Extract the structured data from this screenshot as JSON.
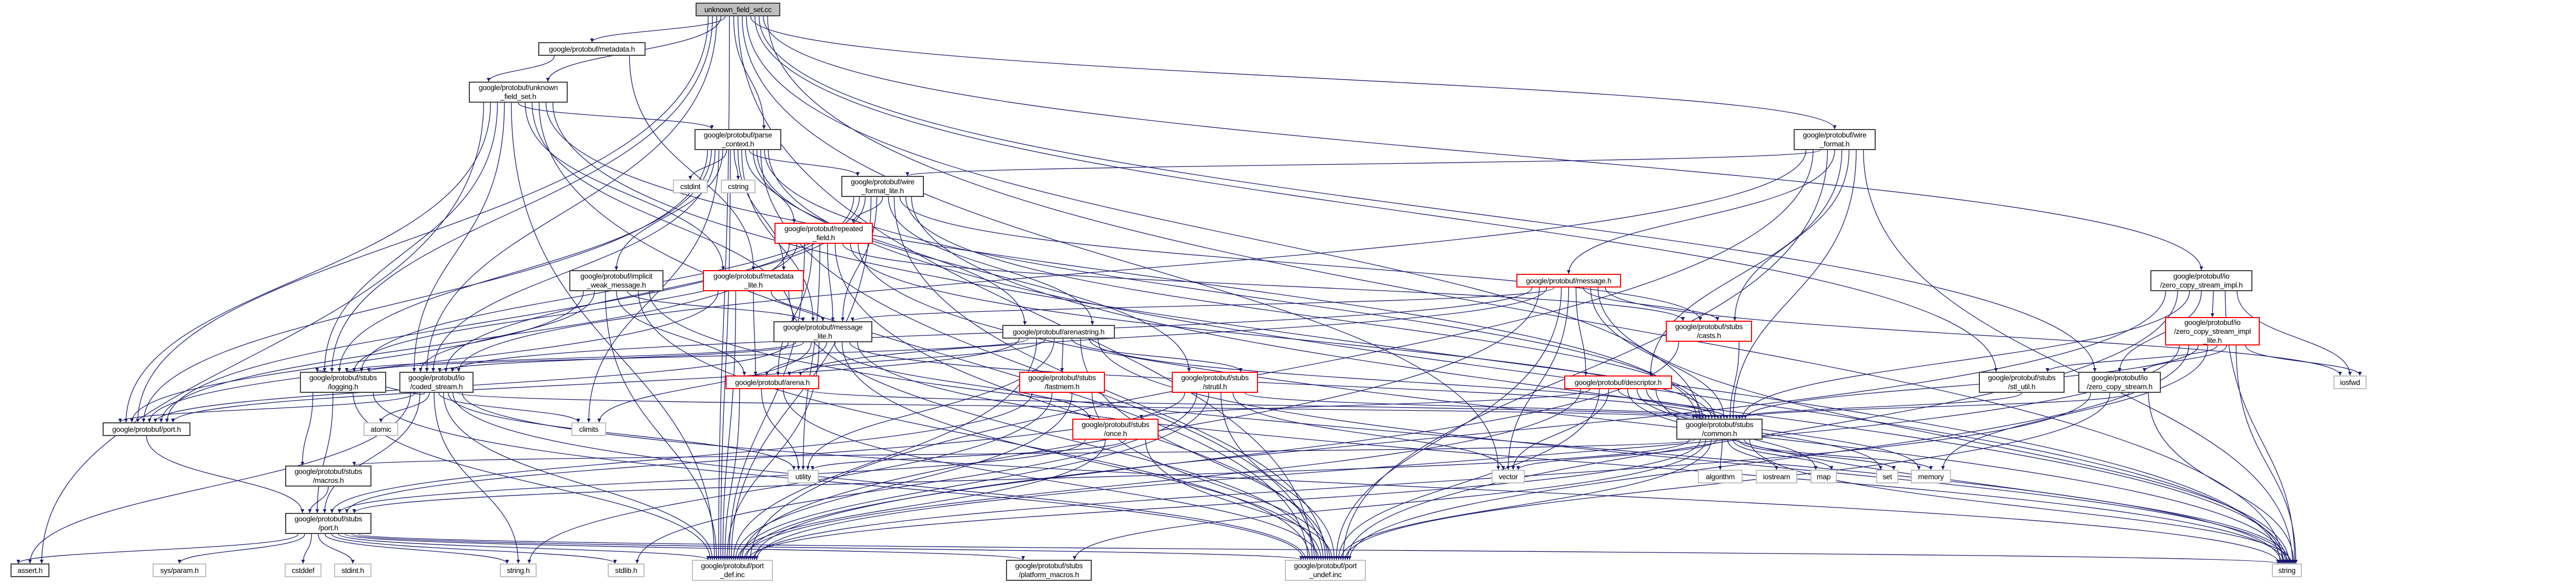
{
  "colors": {
    "edge": "#191970",
    "root_fill": "#bfbfbf",
    "truncated_border": "#ff0000",
    "external_border": "#bfbfbf",
    "normal_border": "#404040"
  },
  "nodes": [
    {
      "label": "unknown_field_set.cc",
      "style": "root"
    },
    {
      "label": "google/protobuf/metadata.h",
      "style": "normal"
    },
    {
      "label": "google/protobuf/unknown\n_field_set.h",
      "style": "normal"
    },
    {
      "label": "google/protobuf/parse\n_context.h",
      "style": "normal"
    },
    {
      "label": "google/protobuf/wire\n_format.h",
      "style": "normal"
    },
    {
      "label": "cstdint",
      "style": "external"
    },
    {
      "label": "cstring",
      "style": "external"
    },
    {
      "label": "google/protobuf/wire\n_format_lite.h",
      "style": "normal"
    },
    {
      "label": "google/protobuf/repeated\n_field.h",
      "style": "truncated"
    },
    {
      "label": "google/protobuf/implicit\n_weak_message.h",
      "style": "normal"
    },
    {
      "label": "google/protobuf/metadata\n_lite.h",
      "style": "truncated"
    },
    {
      "label": "google/protobuf/message.h",
      "style": "truncated"
    },
    {
      "label": "google/protobuf/io\n/zero_copy_stream_impl.h",
      "style": "normal"
    },
    {
      "label": "google/protobuf/io\n/zero_copy_stream_impl\n_lite.h",
      "style": "truncated"
    },
    {
      "label": "google/protobuf/message\n_lite.h",
      "style": "normal"
    },
    {
      "label": "google/protobuf/arenastring.h",
      "style": "normal"
    },
    {
      "label": "google/protobuf/stubs\n/casts.h",
      "style": "truncated"
    },
    {
      "label": "google/protobuf/stubs\n/logging.h",
      "style": "normal"
    },
    {
      "label": "google/protobuf/io\n/coded_stream.h",
      "style": "normal"
    },
    {
      "label": "google/protobuf/stubs\n/fastmem.h",
      "style": "truncated"
    },
    {
      "label": "google/protobuf/stubs\n/strutil.h",
      "style": "truncated"
    },
    {
      "label": "google/protobuf/arena.h",
      "style": "truncated"
    },
    {
      "label": "google/protobuf/descriptor.h",
      "style": "truncated"
    },
    {
      "label": "google/protobuf/stubs\n/stl_util.h",
      "style": "normal"
    },
    {
      "label": "google/protobuf/io\n/zero_copy_stream.h",
      "style": "normal"
    },
    {
      "label": "iosfwd",
      "style": "external"
    },
    {
      "label": "google/protobuf/stubs\n/once.h",
      "style": "truncated"
    },
    {
      "label": "google/protobuf/stubs\n/common.h",
      "style": "normal"
    },
    {
      "label": "google/protobuf/port.h",
      "style": "normal"
    },
    {
      "label": "atomic",
      "style": "external"
    },
    {
      "label": "climits",
      "style": "external"
    },
    {
      "label": "google/protobuf/stubs\n/macros.h",
      "style": "normal"
    },
    {
      "label": "utility",
      "style": "external"
    },
    {
      "label": "vector",
      "style": "external"
    },
    {
      "label": "algorithm",
      "style": "external"
    },
    {
      "label": "iostream",
      "style": "external"
    },
    {
      "label": "map",
      "style": "external"
    },
    {
      "label": "set",
      "style": "external"
    },
    {
      "label": "memory",
      "style": "external"
    },
    {
      "label": "google/protobuf/stubs\n/port.h",
      "style": "normal"
    },
    {
      "label": "assert.h",
      "style": "normal"
    },
    {
      "label": "sys/param.h",
      "style": "external"
    },
    {
      "label": "cstddef",
      "style": "external"
    },
    {
      "label": "stdint.h",
      "style": "external"
    },
    {
      "label": "string.h",
      "style": "external"
    },
    {
      "label": "stdlib.h",
      "style": "external"
    },
    {
      "label": "google/protobuf/port\n_def.inc",
      "style": "external"
    },
    {
      "label": "google/protobuf/stubs\n/platform_macros.h",
      "style": "normal"
    },
    {
      "label": "google/protobuf/port\n_undef.inc",
      "style": "external"
    },
    {
      "label": "string",
      "style": "external"
    }
  ],
  "edges": [
    [
      0,
      1
    ],
    [
      0,
      2
    ],
    [
      0,
      3
    ],
    [
      0,
      4
    ],
    [
      0,
      12
    ],
    [
      0,
      18
    ],
    [
      0,
      17
    ],
    [
      0,
      28
    ],
    [
      0,
      27
    ],
    [
      0,
      23
    ],
    [
      0,
      24
    ],
    [
      0,
      49
    ],
    [
      0,
      46
    ],
    [
      0,
      48
    ],
    [
      0,
      33
    ],
    [
      1,
      2
    ],
    [
      1,
      10
    ],
    [
      2,
      3
    ],
    [
      2,
      10
    ],
    [
      2,
      18
    ],
    [
      2,
      17
    ],
    [
      2,
      28
    ],
    [
      2,
      27
    ],
    [
      2,
      49
    ],
    [
      2,
      40
    ],
    [
      2,
      46
    ],
    [
      2,
      48
    ],
    [
      2,
      14
    ],
    [
      3,
      5
    ],
    [
      3,
      6
    ],
    [
      3,
      7
    ],
    [
      3,
      8
    ],
    [
      3,
      9
    ],
    [
      3,
      10
    ],
    [
      3,
      15
    ],
    [
      3,
      20
    ],
    [
      3,
      18
    ],
    [
      3,
      17
    ],
    [
      3,
      27
    ],
    [
      3,
      28
    ],
    [
      3,
      14
    ],
    [
      3,
      46
    ],
    [
      3,
      48
    ],
    [
      3,
      49
    ],
    [
      3,
      30
    ],
    [
      4,
      7
    ],
    [
      4,
      11
    ],
    [
      4,
      16
    ],
    [
      4,
      22
    ],
    [
      4,
      27
    ],
    [
      4,
      18
    ],
    [
      4,
      46
    ],
    [
      4,
      48
    ],
    [
      4,
      49
    ],
    [
      7,
      8
    ],
    [
      7,
      14
    ],
    [
      7,
      15
    ],
    [
      7,
      16
    ],
    [
      7,
      27
    ],
    [
      7,
      17
    ],
    [
      7,
      18
    ],
    [
      7,
      28
    ],
    [
      7,
      46
    ],
    [
      7,
      48
    ],
    [
      7,
      49
    ],
    [
      8,
      14
    ],
    [
      8,
      21
    ],
    [
      8,
      17
    ],
    [
      8,
      28
    ],
    [
      8,
      32
    ],
    [
      8,
      16
    ],
    [
      8,
      27
    ],
    [
      8,
      46
    ],
    [
      8,
      48
    ],
    [
      8,
      49
    ],
    [
      9,
      14
    ],
    [
      9,
      21
    ],
    [
      9,
      18
    ],
    [
      9,
      28
    ],
    [
      9,
      49
    ],
    [
      9,
      46
    ],
    [
      9,
      48
    ],
    [
      10,
      14
    ],
    [
      10,
      21
    ],
    [
      10,
      28
    ],
    [
      10,
      46
    ],
    [
      10,
      48
    ],
    [
      11,
      22
    ],
    [
      11,
      16
    ],
    [
      11,
      27
    ],
    [
      11,
      14
    ],
    [
      11,
      21
    ],
    [
      11,
      33
    ],
    [
      11,
      49
    ],
    [
      11,
      46
    ],
    [
      11,
      48
    ],
    [
      11,
      18
    ],
    [
      11,
      25
    ],
    [
      12,
      13
    ],
    [
      12,
      24
    ],
    [
      12,
      27
    ],
    [
      12,
      25
    ],
    [
      12,
      49
    ],
    [
      12,
      46
    ],
    [
      12,
      48
    ],
    [
      13,
      24
    ],
    [
      13,
      23
    ],
    [
      13,
      27
    ],
    [
      13,
      25
    ],
    [
      13,
      49
    ],
    [
      13,
      38
    ],
    [
      13,
      46
    ],
    [
      13,
      48
    ],
    [
      14,
      21
    ],
    [
      14,
      30
    ],
    [
      14,
      27
    ],
    [
      14,
      17
    ],
    [
      14,
      18
    ],
    [
      14,
      28
    ],
    [
      14,
      26
    ],
    [
      14,
      49
    ],
    [
      14,
      46
    ],
    [
      14,
      48
    ],
    [
      15,
      19
    ],
    [
      15,
      21
    ],
    [
      15,
      17
    ],
    [
      15,
      27
    ],
    [
      15,
      28
    ],
    [
      15,
      32
    ],
    [
      15,
      49
    ],
    [
      15,
      46
    ],
    [
      15,
      48
    ],
    [
      15,
      20
    ],
    [
      16,
      27
    ],
    [
      16,
      46
    ],
    [
      17,
      31
    ],
    [
      17,
      39
    ],
    [
      17,
      46
    ],
    [
      17,
      48
    ],
    [
      18,
      29
    ],
    [
      18,
      30
    ],
    [
      18,
      28
    ],
    [
      18,
      39
    ],
    [
      18,
      40
    ],
    [
      18,
      32
    ],
    [
      18,
      27
    ],
    [
      18,
      49
    ],
    [
      18,
      46
    ],
    [
      18,
      48
    ],
    [
      18,
      44
    ],
    [
      18,
      17
    ],
    [
      19,
      39
    ],
    [
      19,
      44
    ],
    [
      19,
      46
    ],
    [
      19,
      48
    ],
    [
      20,
      27
    ],
    [
      20,
      39
    ],
    [
      20,
      33
    ],
    [
      20,
      45
    ],
    [
      20,
      46
    ],
    [
      20,
      48
    ],
    [
      21,
      32
    ],
    [
      21,
      46
    ],
    [
      21,
      48
    ],
    [
      21,
      27
    ],
    [
      22,
      27
    ],
    [
      22,
      26
    ],
    [
      22,
      33
    ],
    [
      22,
      38
    ],
    [
      22,
      37
    ],
    [
      22,
      36
    ],
    [
      22,
      49
    ],
    [
      22,
      46
    ],
    [
      22,
      48
    ],
    [
      23,
      27
    ],
    [
      24,
      27
    ],
    [
      24,
      49
    ],
    [
      24,
      46
    ],
    [
      24,
      48
    ],
    [
      26,
      39
    ],
    [
      26,
      46
    ],
    [
      26,
      48
    ],
    [
      26,
      32
    ],
    [
      27,
      33
    ],
    [
      27,
      34
    ],
    [
      27,
      35
    ],
    [
      27,
      36
    ],
    [
      27,
      37
    ],
    [
      27,
      38
    ],
    [
      27,
      49
    ],
    [
      27,
      39
    ],
    [
      27,
      31
    ],
    [
      27,
      47
    ],
    [
      27,
      46
    ],
    [
      27,
      48
    ],
    [
      28,
      39
    ],
    [
      31,
      39
    ],
    [
      39,
      40
    ],
    [
      39,
      41
    ],
    [
      39,
      42
    ],
    [
      39,
      43
    ],
    [
      39,
      44
    ],
    [
      39,
      45
    ],
    [
      39,
      46
    ],
    [
      39,
      47
    ],
    [
      39,
      48
    ],
    [
      39,
      49
    ]
  ]
}
